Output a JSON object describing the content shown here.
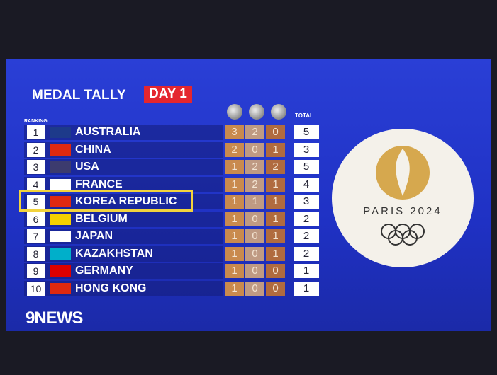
{
  "header": {
    "title": "MEDAL TALLY",
    "badge": "DAY 1"
  },
  "table": {
    "ranking_label": "RANKING",
    "total_label": "TOTAL",
    "rows": [
      {
        "rank": 1,
        "country": "AUSTRALIA",
        "gold": 3,
        "silver": 2,
        "bronze": 0,
        "total": 5
      },
      {
        "rank": 2,
        "country": "CHINA",
        "gold": 2,
        "silver": 0,
        "bronze": 1,
        "total": 3
      },
      {
        "rank": 3,
        "country": "USA",
        "gold": 1,
        "silver": 2,
        "bronze": 2,
        "total": 5
      },
      {
        "rank": 4,
        "country": "FRANCE",
        "gold": 1,
        "silver": 2,
        "bronze": 1,
        "total": 4
      },
      {
        "rank": 5,
        "country": "KOREA REPUBLIC",
        "gold": 1,
        "silver": 1,
        "bronze": 1,
        "total": 3
      },
      {
        "rank": 6,
        "country": "BELGIUM",
        "gold": 1,
        "silver": 0,
        "bronze": 1,
        "total": 2
      },
      {
        "rank": 7,
        "country": "JAPAN",
        "gold": 1,
        "silver": 0,
        "bronze": 1,
        "total": 2
      },
      {
        "rank": 8,
        "country": "KAZAKHSTAN",
        "gold": 1,
        "silver": 0,
        "bronze": 1,
        "total": 2
      },
      {
        "rank": 9,
        "country": "GERMANY",
        "gold": 1,
        "silver": 0,
        "bronze": 0,
        "total": 1
      },
      {
        "rank": 10,
        "country": "HONG KONG",
        "gold": 1,
        "silver": 0,
        "bronze": 0,
        "total": 1
      }
    ]
  },
  "logo": {
    "text": "PARIS 2024"
  },
  "footer": {
    "brand": "9NEWS"
  }
}
